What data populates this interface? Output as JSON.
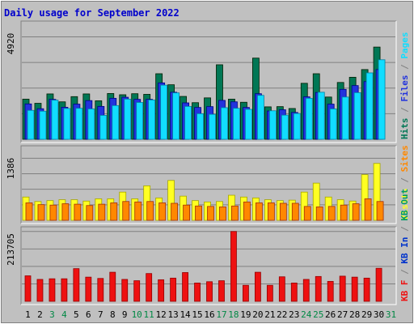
{
  "colors": {
    "background": "#c0c0c0",
    "grid": "#808080",
    "title": "#0000cc",
    "weekday": "#000000",
    "weekend": "#008844",
    "hits": "#007755",
    "files": "#2233dd",
    "pages": "#11ddff",
    "visits": "#ffff22",
    "sites": "#ff8800",
    "kbin": "#009966",
    "kbout": "#0033cc",
    "kbf": "#ee1111"
  },
  "chart_data": {
    "type": "bar",
    "title": "Daily usage for September 2022",
    "days": [
      "1",
      "2",
      "3",
      "4",
      "5",
      "6",
      "7",
      "8",
      "9",
      "10",
      "11",
      "12",
      "13",
      "14",
      "15",
      "16",
      "17",
      "18",
      "19",
      "20",
      "21",
      "22",
      "23",
      "24",
      "25",
      "26",
      "27",
      "28",
      "29",
      "30",
      "31"
    ],
    "weekend_days": [
      "3",
      "4",
      "10",
      "11",
      "17",
      "18",
      "24",
      "25",
      "31"
    ],
    "panels": [
      {
        "ymax_label": "4920",
        "ymax": 4920,
        "side_labels": [
          {
            "text": "Hits",
            "color": "hits"
          },
          {
            "text": " / ",
            "color": "grid"
          },
          {
            "text": "Files",
            "color": "files"
          },
          {
            "text": " / ",
            "color": "grid"
          },
          {
            "text": "Pages",
            "color": "pages"
          }
        ],
        "series": [
          {
            "name": "Hits",
            "color": "hits",
            "values": [
              1930,
              1730,
              2180,
              1800,
              2050,
              2180,
              1850,
              2200,
              2140,
              2190,
              2160,
              3150,
              2620,
              2060,
              1760,
              1990,
              3580,
              1930,
              1780,
              3900,
              1560,
              1570,
              1480,
              2690,
              3150,
              2030,
              2730,
              2980,
              3350,
              4430,
              0
            ]
          },
          {
            "name": "Files",
            "color": "files",
            "values": [
              1700,
              1470,
              1920,
              1540,
              1690,
              1860,
              1580,
              1970,
              2020,
              1920,
              1920,
              2710,
              2260,
              1750,
              1530,
              1570,
              1870,
              1800,
              1530,
              2190,
              1360,
              1420,
              1290,
              2040,
              2250,
              1690,
              2400,
              2580,
              2770,
              3350,
              0
            ]
          },
          {
            "name": "Pages",
            "color": "pages",
            "values": [
              1390,
              1350,
              1880,
              1480,
              1490,
              1460,
              1150,
              1620,
              1930,
              1770,
              1890,
              2600,
              2230,
              1580,
              1230,
              1200,
              1520,
              1490,
              1440,
              2110,
              1370,
              1160,
              1240,
              1970,
              2260,
              1460,
              2030,
              2240,
              3190,
              3820,
              0
            ]
          }
        ]
      },
      {
        "ymax_label": "1386",
        "ymax": 1386,
        "side_labels": [
          {
            "text": "Visits",
            "color": "visits"
          },
          {
            "text": " / ",
            "color": "grid"
          },
          {
            "text": "Sites",
            "color": "sites"
          }
        ],
        "series": [
          {
            "name": "Visits",
            "color": "visits",
            "values": [
              520,
              420,
              440,
              460,
              460,
              430,
              480,
              480,
              630,
              480,
              770,
              500,
              890,
              540,
              440,
              410,
              420,
              560,
              520,
              500,
              460,
              440,
              450,
              630,
              830,
              520,
              460,
              430,
              1020,
              1270,
              0
            ]
          },
          {
            "name": "Sites",
            "color": "sites",
            "values": [
              390,
              350,
              340,
              370,
              360,
              330,
              360,
              390,
              420,
              410,
              420,
              390,
              380,
              340,
              320,
              310,
              300,
              320,
              410,
              390,
              390,
              380,
              380,
              310,
              300,
              310,
              340,
              370,
              480,
              420,
              0
            ]
          }
        ]
      },
      {
        "ymax_label": "213705",
        "ymax": 213705,
        "side_labels": [
          {
            "text": "KB F",
            "color": "kbf"
          },
          {
            "text": " / ",
            "color": "grid"
          },
          {
            "text": "KB In",
            "color": "kbout"
          },
          {
            "text": " / ",
            "color": "grid"
          },
          {
            "text": "KB Out",
            "color": "kbin"
          }
        ],
        "series": [
          {
            "name": "KB F",
            "color": "kbf",
            "values": [
              78000,
              67000,
              69000,
              69000,
              100000,
              74000,
              70000,
              89000,
              67000,
              63000,
              85000,
              66000,
              71000,
              88000,
              56000,
              60000,
              63000,
              213705,
              49000,
              89000,
              49000,
              75000,
              56000,
              67000,
              76000,
              61000,
              77000,
              74000,
              71000,
              101000,
              0
            ]
          }
        ]
      }
    ]
  }
}
